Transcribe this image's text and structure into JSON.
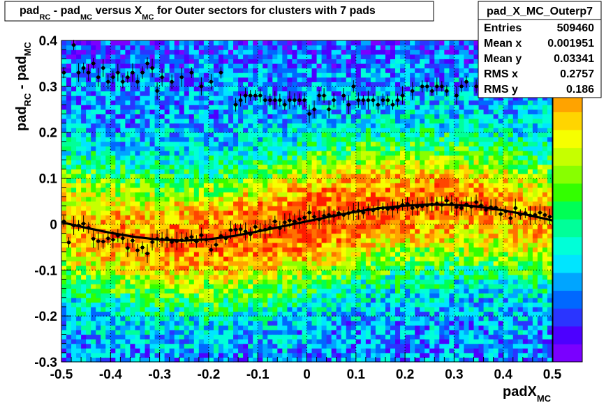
{
  "chart_data": {
    "type": "heatmap",
    "title": {
      "parts": [
        {
          "text": "pad",
          "sub": "RC"
        },
        {
          "text": " - pad",
          "sub": "MC"
        },
        {
          "text": " versus X",
          "sub": "MC"
        },
        {
          "text": " for Outer sectors for clusters with 7 pads",
          "sub": ""
        }
      ]
    },
    "xlabel": {
      "main": "padX",
      "sub": "MC"
    },
    "ylabel": {
      "main": "pad",
      "sub1": "RC",
      "mid": " - pad",
      "sub2": "MC"
    },
    "xlim": [
      -0.5,
      0.5
    ],
    "ylim": [
      -0.3,
      0.4
    ],
    "xticks": [
      -0.5,
      -0.4,
      -0.3,
      -0.2,
      -0.1,
      0,
      0.1,
      0.2,
      0.3,
      0.4,
      0.5
    ],
    "xtick_labels": [
      "-0.5",
      "-0.4",
      "-0.3",
      "-0.2",
      "-0.1",
      "0",
      "0.1",
      "0.2",
      "0.3",
      "0.4",
      "0.5"
    ],
    "yticks": [
      -0.3,
      -0.2,
      -0.1,
      0,
      0.1,
      0.2,
      0.3,
      0.4
    ],
    "ytick_labels": [
      "-0.3",
      "-0.2",
      "-0.1",
      "0",
      "0.1",
      "0.2",
      "0.3",
      "0.4"
    ],
    "grid": true,
    "colormap": [
      "#7a00ff",
      "#4c00ff",
      "#2a35ff",
      "#0068ff",
      "#00a5ff",
      "#00e5ff",
      "#00ffd8",
      "#00ff99",
      "#00ff55",
      "#33ff00",
      "#88ff00",
      "#c6ff00",
      "#f6ff00",
      "#ffd500",
      "#ffa300",
      "#ff7200",
      "#ff4500",
      "#ff1b00"
    ],
    "stats": {
      "name": "pad_X_MC_Outerp7",
      "rows": [
        {
          "label": "Entries",
          "value": "509460"
        },
        {
          "label": "Mean x",
          "value": "0.001951"
        },
        {
          "label": "Mean y",
          "value": "0.03341"
        },
        {
          "label": "RMS x",
          "value": "0.2757"
        },
        {
          "label": "RMS y",
          "value": "0.186"
        }
      ]
    },
    "profile_points": {
      "x": [
        -0.495,
        -0.485,
        -0.475,
        -0.465,
        -0.455,
        -0.445,
        -0.435,
        -0.425,
        -0.415,
        -0.405,
        -0.395,
        -0.385,
        -0.375,
        -0.365,
        -0.355,
        -0.345,
        -0.335,
        -0.325,
        -0.315,
        -0.305,
        -0.295,
        -0.285,
        -0.275,
        -0.265,
        -0.255,
        -0.245,
        -0.235,
        -0.225,
        -0.215,
        -0.205,
        -0.195,
        -0.185,
        -0.175,
        -0.165,
        -0.155,
        -0.145,
        -0.135,
        -0.125,
        -0.115,
        -0.105,
        -0.095,
        -0.085,
        -0.075,
        -0.065,
        -0.055,
        -0.045,
        -0.035,
        -0.025,
        -0.015,
        -0.005,
        0.005,
        0.015,
        0.025,
        0.035,
        0.045,
        0.055,
        0.065,
        0.075,
        0.085,
        0.095,
        0.105,
        0.115,
        0.125,
        0.135,
        0.145,
        0.155,
        0.165,
        0.175,
        0.185,
        0.195,
        0.205,
        0.215,
        0.225,
        0.235,
        0.245,
        0.255,
        0.265,
        0.275,
        0.285,
        0.295,
        0.305,
        0.315,
        0.325,
        0.335,
        0.345,
        0.355,
        0.365,
        0.375,
        0.385,
        0.395,
        0.405,
        0.415,
        0.425,
        0.435,
        0.445,
        0.455,
        0.465,
        0.475,
        0.485,
        0.495
      ],
      "y": [
        0.006,
        -0.04,
        -0.003,
        -0.003,
        0.001,
        -0.008,
        -0.032,
        -0.037,
        -0.038,
        -0.031,
        -0.034,
        -0.025,
        -0.031,
        -0.052,
        -0.036,
        -0.057,
        -0.051,
        -0.064,
        -0.039,
        -0.032,
        -0.033,
        -0.031,
        -0.039,
        -0.037,
        -0.035,
        -0.031,
        -0.028,
        -0.038,
        -0.024,
        -0.034,
        -0.056,
        -0.045,
        -0.026,
        -0.031,
        -0.013,
        -0.012,
        -0.011,
        -0.016,
        -0.022,
        -0.006,
        -0.014,
        -0.012,
        -0.008,
        0.006,
        -0.009,
        0.004,
        0.008,
        0.006,
        0.011,
        0.014,
        0.025,
        0.016,
        0.01,
        0.018,
        0.02,
        0.018,
        0.024,
        0.02,
        0.024,
        0.027,
        0.029,
        0.025,
        0.032,
        0.03,
        0.034,
        0.035,
        0.033,
        0.034,
        0.036,
        0.042,
        0.044,
        0.035,
        0.038,
        0.039,
        0.041,
        0.043,
        0.045,
        0.042,
        0.051,
        0.044,
        0.037,
        0.035,
        0.043,
        0.038,
        0.048,
        0.041,
        0.031,
        0.037,
        0.036,
        0.022,
        0.028,
        0.013,
        0.035,
        0.021,
        0.024,
        0.019,
        0.02,
        0.025,
        0.02,
        0.016
      ]
    },
    "upper_points": {
      "x": [
        -0.495,
        -0.475,
        -0.465,
        -0.455,
        -0.445,
        -0.435,
        -0.425,
        -0.415,
        -0.405,
        -0.395,
        -0.385,
        -0.375,
        -0.365,
        -0.355,
        -0.345,
        -0.335,
        -0.325,
        -0.315,
        -0.305,
        -0.295,
        -0.275,
        -0.255,
        -0.235,
        -0.215,
        -0.195,
        -0.175,
        -0.145,
        -0.135,
        -0.125,
        -0.115,
        -0.105,
        -0.095,
        -0.085,
        -0.075,
        -0.065,
        -0.055,
        -0.045,
        -0.035,
        -0.025,
        -0.015,
        -0.005,
        0.005,
        0.015,
        0.025,
        0.035,
        0.045,
        0.055,
        0.075,
        0.085,
        0.095,
        0.105,
        0.115,
        0.125,
        0.135,
        0.145,
        0.155,
        0.165,
        0.175,
        0.185,
        0.195,
        0.215,
        0.235,
        0.245,
        0.255,
        0.265,
        0.275,
        0.285,
        0.305,
        0.315,
        0.325,
        0.345,
        0.355,
        0.365,
        0.375,
        0.385,
        0.395,
        0.405,
        0.415,
        0.425,
        0.435,
        0.445,
        0.455,
        0.465,
        0.475,
        0.485
      ],
      "y": [
        0.33,
        0.39,
        0.33,
        0.34,
        0.33,
        0.35,
        0.32,
        0.34,
        0.31,
        0.32,
        0.33,
        0.31,
        0.32,
        0.33,
        0.31,
        0.33,
        0.35,
        0.34,
        0.29,
        0.32,
        0.31,
        0.32,
        0.33,
        0.3,
        0.31,
        0.33,
        0.26,
        0.27,
        0.28,
        0.28,
        0.28,
        0.28,
        0.27,
        0.27,
        0.27,
        0.27,
        0.26,
        0.27,
        0.27,
        0.27,
        0.27,
        0.24,
        0.25,
        0.28,
        0.28,
        0.25,
        0.27,
        0.28,
        0.26,
        0.3,
        0.27,
        0.27,
        0.27,
        0.27,
        0.26,
        0.27,
        0.27,
        0.26,
        0.27,
        0.28,
        0.29,
        0.3,
        0.3,
        0.29,
        0.3,
        0.3,
        0.29,
        0.28,
        0.3,
        0.31,
        0.3,
        0.33,
        0.33,
        0.33,
        0.33,
        0.3,
        0.32,
        0.33,
        0.33,
        0.36,
        0.34,
        0.33,
        0.34,
        0.34,
        0.34
      ]
    },
    "fit_curve": {
      "x": [
        -0.5,
        -0.45,
        -0.4,
        -0.35,
        -0.3,
        -0.25,
        -0.2,
        -0.15,
        -0.1,
        -0.05,
        0,
        0.05,
        0.1,
        0.15,
        0.2,
        0.25,
        0.3,
        0.35,
        0.4,
        0.45,
        0.5
      ],
      "y": [
        0.004,
        -0.008,
        -0.019,
        -0.028,
        -0.034,
        -0.036,
        -0.033,
        -0.026,
        -0.016,
        -0.005,
        0.006,
        0.017,
        0.027,
        0.035,
        0.04,
        0.043,
        0.042,
        0.038,
        0.03,
        0.02,
        0.008
      ]
    }
  }
}
